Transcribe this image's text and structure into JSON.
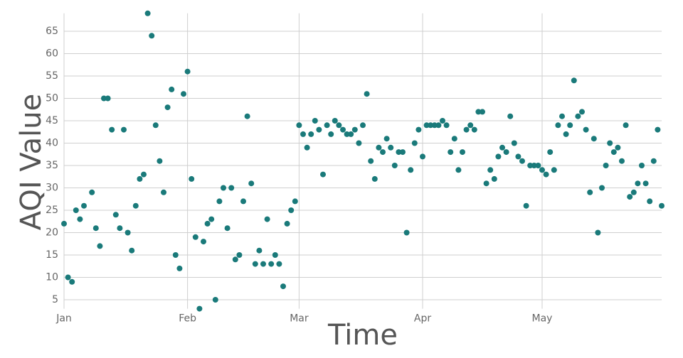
{
  "chart_data": {
    "type": "scatter",
    "xlabel": "Time",
    "ylabel": "AQI Value",
    "color": "#1a7a7a",
    "grid": true,
    "xlim": [
      0,
      150
    ],
    "ylim": [
      3,
      69
    ],
    "xticks": [
      {
        "value": 0,
        "label": "Jan"
      },
      {
        "value": 31,
        "label": "Feb"
      },
      {
        "value": 59,
        "label": "Mar"
      },
      {
        "value": 90,
        "label": "Apr"
      },
      {
        "value": 120,
        "label": "May"
      }
    ],
    "yticks": [
      5,
      10,
      15,
      20,
      25,
      30,
      35,
      40,
      45,
      50,
      55,
      60,
      65
    ],
    "x": [
      0,
      1,
      2,
      3,
      4,
      5,
      7,
      8,
      9,
      10,
      11,
      12,
      13,
      14,
      15,
      16,
      17,
      18,
      19,
      20,
      21,
      22,
      23,
      24,
      25,
      26,
      27,
      28,
      29,
      30,
      31,
      32,
      33,
      34,
      35,
      36,
      37,
      38,
      39,
      40,
      41,
      42,
      43,
      44,
      45,
      46,
      47,
      48,
      49,
      50,
      51,
      52,
      53,
      54,
      55,
      56,
      57,
      58,
      59,
      60,
      61,
      62,
      63,
      64,
      65,
      66,
      67,
      68,
      69,
      70,
      71,
      72,
      73,
      74,
      75,
      76,
      77,
      78,
      79,
      80,
      81,
      82,
      83,
      84,
      85,
      86,
      87,
      88,
      89,
      90,
      91,
      92,
      93,
      94,
      95,
      96,
      97,
      98,
      99,
      100,
      101,
      102,
      103,
      104,
      105,
      106,
      107,
      108,
      109,
      110,
      111,
      112,
      113,
      114,
      115,
      116,
      117,
      118,
      119,
      120,
      121,
      122,
      123,
      124,
      125,
      126,
      127,
      128,
      129,
      130,
      131,
      132,
      133,
      134,
      135,
      136,
      137,
      138,
      139,
      140,
      141,
      142,
      143,
      144,
      145,
      146,
      147,
      148,
      149,
      150
    ],
    "values": [
      22,
      10,
      9,
      25,
      23,
      26,
      29,
      21,
      17,
      50,
      50,
      43,
      24,
      21,
      43,
      20,
      16,
      26,
      32,
      33,
      69,
      64,
      44,
      36,
      29,
      48,
      52,
      15,
      12,
      51,
      56,
      32,
      19,
      3,
      18,
      22,
      23,
      5,
      27,
      30,
      21,
      30,
      14,
      15,
      27,
      46,
      31,
      13,
      16,
      13,
      23,
      13,
      15,
      13,
      8,
      22,
      25,
      27,
      44,
      42,
      39,
      42,
      45,
      43,
      33,
      44,
      42,
      45,
      44,
      43,
      42,
      42,
      43,
      40,
      44,
      51,
      36,
      32,
      39,
      38,
      41,
      39,
      35,
      38,
      38,
      20,
      34,
      40,
      43,
      37,
      44,
      44,
      44,
      44,
      45,
      44,
      38,
      41,
      34,
      38,
      43,
      44,
      43,
      47,
      47,
      31,
      34,
      32,
      37,
      39,
      38,
      46,
      40,
      37,
      36,
      26,
      35,
      35,
      35,
      34,
      33,
      38,
      34,
      44,
      46,
      42,
      44,
      54,
      46,
      47,
      43,
      29,
      41,
      20,
      30,
      35,
      40,
      38,
      39,
      36,
      44,
      28,
      29,
      31,
      35,
      31,
      27,
      36,
      43,
      26
    ]
  }
}
